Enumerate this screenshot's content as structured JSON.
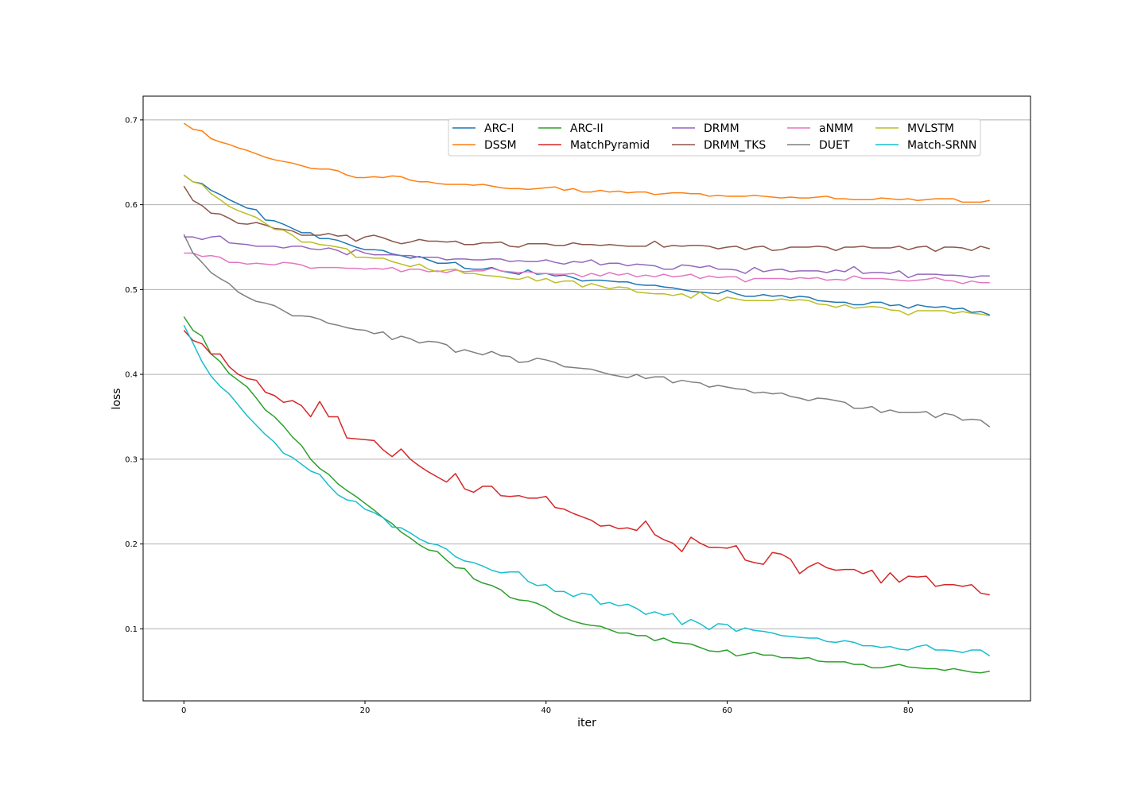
{
  "chart_data": {
    "type": "line",
    "title": "",
    "xlabel": "iter",
    "ylabel": "loss",
    "xlim": [
      -4.5,
      93.5
    ],
    "ylim": [
      0.015,
      0.728
    ],
    "xticks": [
      0,
      20,
      40,
      60,
      80
    ],
    "yticks": [
      0.1,
      0.2,
      0.3,
      0.4,
      0.5,
      0.6,
      0.7
    ],
    "ytick_labels": [
      "0.1",
      "0.2",
      "0.3",
      "0.4",
      "0.5",
      "0.6",
      "0.7"
    ],
    "grid": "horizontal",
    "legend_position": "upper-right",
    "legend_columns": 6,
    "x_start": 0,
    "x_step": 1,
    "series": [
      {
        "name": "ARC-I",
        "color": "#1f77b4",
        "values": [
          0.635,
          0.627,
          0.625,
          0.617,
          0.612,
          0.606,
          0.601,
          0.596,
          0.594,
          0.582,
          0.581,
          0.577,
          0.572,
          0.567,
          0.567,
          0.56,
          0.56,
          0.558,
          0.554,
          0.55,
          0.547,
          0.547,
          0.546,
          0.542,
          0.54,
          0.537,
          0.539,
          0.535,
          0.531,
          0.531,
          0.532,
          0.525,
          0.524,
          0.524,
          0.526,
          0.522,
          0.52,
          0.518,
          0.523,
          0.518,
          0.519,
          0.516,
          0.517,
          0.514,
          0.51,
          0.511,
          0.511,
          0.51,
          0.509,
          0.509,
          0.506,
          0.505,
          0.505,
          0.503,
          0.502,
          0.5,
          0.498,
          0.497,
          0.496,
          0.495,
          0.499,
          0.495,
          0.492,
          0.492,
          0.494,
          0.492,
          0.493,
          0.49,
          0.492,
          0.491,
          0.487,
          0.486,
          0.485,
          0.485,
          0.482,
          0.482,
          0.485,
          0.485,
          0.481,
          0.482,
          0.478,
          0.482,
          0.48,
          0.479,
          0.48,
          0.477,
          0.478,
          0.473,
          0.474,
          0.47
        ]
      },
      {
        "name": "DSSM",
        "color": "#ff7f0e",
        "values": [
          0.696,
          0.689,
          0.687,
          0.678,
          0.674,
          0.671,
          0.667,
          0.664,
          0.66,
          0.656,
          0.653,
          0.651,
          0.649,
          0.646,
          0.643,
          0.642,
          0.642,
          0.64,
          0.635,
          0.632,
          0.632,
          0.633,
          0.632,
          0.634,
          0.633,
          0.629,
          0.627,
          0.627,
          0.625,
          0.624,
          0.624,
          0.624,
          0.623,
          0.624,
          0.622,
          0.62,
          0.619,
          0.619,
          0.618,
          0.619,
          0.62,
          0.621,
          0.617,
          0.619,
          0.615,
          0.615,
          0.617,
          0.615,
          0.616,
          0.614,
          0.615,
          0.615,
          0.612,
          0.613,
          0.614,
          0.614,
          0.613,
          0.613,
          0.61,
          0.611,
          0.61,
          0.61,
          0.61,
          0.611,
          0.61,
          0.609,
          0.608,
          0.609,
          0.608,
          0.608,
          0.609,
          0.61,
          0.607,
          0.607,
          0.606,
          0.606,
          0.606,
          0.608,
          0.607,
          0.606,
          0.607,
          0.605,
          0.606,
          0.607,
          0.607,
          0.607,
          0.603,
          0.603,
          0.603,
          0.605
        ]
      },
      {
        "name": "ARC-II",
        "color": "#2ca02c",
        "values": [
          0.468,
          0.452,
          0.445,
          0.424,
          0.415,
          0.401,
          0.393,
          0.385,
          0.372,
          0.358,
          0.35,
          0.339,
          0.326,
          0.316,
          0.3,
          0.289,
          0.282,
          0.271,
          0.263,
          0.256,
          0.248,
          0.24,
          0.231,
          0.224,
          0.214,
          0.207,
          0.199,
          0.193,
          0.191,
          0.181,
          0.172,
          0.171,
          0.159,
          0.154,
          0.151,
          0.146,
          0.137,
          0.134,
          0.133,
          0.13,
          0.125,
          0.118,
          0.113,
          0.109,
          0.106,
          0.104,
          0.103,
          0.099,
          0.095,
          0.095,
          0.092,
          0.092,
          0.086,
          0.089,
          0.084,
          0.083,
          0.082,
          0.078,
          0.074,
          0.073,
          0.075,
          0.068,
          0.07,
          0.072,
          0.069,
          0.069,
          0.066,
          0.066,
          0.065,
          0.066,
          0.062,
          0.061,
          0.061,
          0.061,
          0.058,
          0.058,
          0.054,
          0.054,
          0.056,
          0.058,
          0.055,
          0.054,
          0.053,
          0.053,
          0.051,
          0.053,
          0.051,
          0.049,
          0.048,
          0.05
        ]
      },
      {
        "name": "MatchPyramid",
        "color": "#d62728",
        "values": [
          0.452,
          0.44,
          0.436,
          0.424,
          0.424,
          0.409,
          0.4,
          0.395,
          0.393,
          0.379,
          0.375,
          0.367,
          0.369,
          0.363,
          0.35,
          0.368,
          0.35,
          0.35,
          0.325,
          0.324,
          0.323,
          0.322,
          0.311,
          0.303,
          0.312,
          0.3,
          0.292,
          0.285,
          0.279,
          0.273,
          0.283,
          0.265,
          0.261,
          0.268,
          0.268,
          0.257,
          0.256,
          0.257,
          0.254,
          0.254,
          0.256,
          0.243,
          0.241,
          0.236,
          0.232,
          0.228,
          0.221,
          0.222,
          0.218,
          0.219,
          0.216,
          0.227,
          0.211,
          0.205,
          0.201,
          0.191,
          0.208,
          0.201,
          0.196,
          0.196,
          0.195,
          0.198,
          0.181,
          0.178,
          0.176,
          0.19,
          0.188,
          0.182,
          0.165,
          0.173,
          0.178,
          0.172,
          0.169,
          0.17,
          0.17,
          0.165,
          0.169,
          0.154,
          0.166,
          0.155,
          0.162,
          0.161,
          0.162,
          0.15,
          0.152,
          0.152,
          0.15,
          0.152,
          0.142,
          0.14
        ]
      },
      {
        "name": "DRMM",
        "color": "#9467bd",
        "values": [
          0.562,
          0.562,
          0.559,
          0.562,
          0.563,
          0.555,
          0.554,
          0.553,
          0.551,
          0.551,
          0.551,
          0.549,
          0.551,
          0.551,
          0.548,
          0.547,
          0.549,
          0.546,
          0.541,
          0.547,
          0.543,
          0.541,
          0.541,
          0.541,
          0.54,
          0.54,
          0.538,
          0.538,
          0.538,
          0.535,
          0.536,
          0.536,
          0.535,
          0.535,
          0.536,
          0.536,
          0.533,
          0.534,
          0.533,
          0.533,
          0.535,
          0.532,
          0.53,
          0.533,
          0.532,
          0.535,
          0.529,
          0.531,
          0.531,
          0.528,
          0.53,
          0.529,
          0.528,
          0.524,
          0.524,
          0.529,
          0.528,
          0.526,
          0.528,
          0.524,
          0.524,
          0.523,
          0.519,
          0.526,
          0.521,
          0.523,
          0.524,
          0.521,
          0.522,
          0.522,
          0.522,
          0.52,
          0.523,
          0.521,
          0.527,
          0.519,
          0.52,
          0.52,
          0.519,
          0.522,
          0.514,
          0.518,
          0.518,
          0.518,
          0.517,
          0.517,
          0.516,
          0.514,
          0.516,
          0.516
        ]
      },
      {
        "name": "DRMM_TKS",
        "color": "#8c564b",
        "values": [
          0.622,
          0.605,
          0.599,
          0.59,
          0.589,
          0.584,
          0.578,
          0.577,
          0.579,
          0.576,
          0.572,
          0.571,
          0.569,
          0.564,
          0.564,
          0.564,
          0.566,
          0.563,
          0.564,
          0.557,
          0.562,
          0.564,
          0.561,
          0.557,
          0.554,
          0.556,
          0.559,
          0.557,
          0.557,
          0.556,
          0.557,
          0.553,
          0.553,
          0.555,
          0.555,
          0.556,
          0.551,
          0.55,
          0.554,
          0.554,
          0.554,
          0.552,
          0.552,
          0.555,
          0.553,
          0.553,
          0.552,
          0.553,
          0.552,
          0.551,
          0.551,
          0.551,
          0.557,
          0.55,
          0.552,
          0.551,
          0.552,
          0.552,
          0.551,
          0.548,
          0.55,
          0.551,
          0.547,
          0.55,
          0.551,
          0.546,
          0.547,
          0.55,
          0.55,
          0.55,
          0.551,
          0.55,
          0.546,
          0.55,
          0.55,
          0.551,
          0.549,
          0.549,
          0.549,
          0.551,
          0.547,
          0.55,
          0.551,
          0.545,
          0.55,
          0.55,
          0.549,
          0.546,
          0.551,
          0.548
        ]
      },
      {
        "name": "aNMM",
        "color": "#e377c2",
        "values": [
          0.543,
          0.543,
          0.539,
          0.54,
          0.538,
          0.532,
          0.532,
          0.53,
          0.531,
          0.53,
          0.529,
          0.532,
          0.531,
          0.529,
          0.525,
          0.526,
          0.526,
          0.526,
          0.525,
          0.525,
          0.524,
          0.525,
          0.524,
          0.526,
          0.521,
          0.524,
          0.524,
          0.521,
          0.522,
          0.52,
          0.523,
          0.521,
          0.522,
          0.522,
          0.525,
          0.522,
          0.521,
          0.52,
          0.521,
          0.519,
          0.519,
          0.518,
          0.518,
          0.519,
          0.515,
          0.519,
          0.516,
          0.52,
          0.517,
          0.519,
          0.515,
          0.517,
          0.515,
          0.518,
          0.515,
          0.516,
          0.518,
          0.513,
          0.516,
          0.514,
          0.515,
          0.515,
          0.509,
          0.513,
          0.513,
          0.513,
          0.513,
          0.512,
          0.514,
          0.513,
          0.514,
          0.511,
          0.512,
          0.511,
          0.516,
          0.513,
          0.513,
          0.513,
          0.512,
          0.511,
          0.51,
          0.511,
          0.512,
          0.514,
          0.511,
          0.51,
          0.507,
          0.51,
          0.508,
          0.508
        ]
      },
      {
        "name": "DUET",
        "color": "#7f7f7f",
        "values": [
          0.565,
          0.543,
          0.532,
          0.52,
          0.513,
          0.507,
          0.497,
          0.491,
          0.486,
          0.484,
          0.481,
          0.475,
          0.469,
          0.469,
          0.468,
          0.465,
          0.46,
          0.458,
          0.455,
          0.453,
          0.452,
          0.448,
          0.45,
          0.441,
          0.445,
          0.442,
          0.437,
          0.439,
          0.438,
          0.435,
          0.426,
          0.429,
          0.426,
          0.423,
          0.427,
          0.422,
          0.421,
          0.414,
          0.415,
          0.419,
          0.417,
          0.414,
          0.409,
          0.408,
          0.407,
          0.406,
          0.403,
          0.4,
          0.398,
          0.396,
          0.4,
          0.395,
          0.397,
          0.397,
          0.39,
          0.393,
          0.391,
          0.39,
          0.385,
          0.387,
          0.385,
          0.383,
          0.382,
          0.378,
          0.379,
          0.377,
          0.378,
          0.374,
          0.372,
          0.369,
          0.372,
          0.371,
          0.369,
          0.367,
          0.36,
          0.36,
          0.362,
          0.355,
          0.358,
          0.355,
          0.355,
          0.355,
          0.356,
          0.349,
          0.354,
          0.352,
          0.346,
          0.347,
          0.346,
          0.338
        ]
      },
      {
        "name": "MVLSTM",
        "color": "#bcbd22",
        "values": [
          0.635,
          0.627,
          0.624,
          0.613,
          0.606,
          0.598,
          0.593,
          0.589,
          0.585,
          0.578,
          0.571,
          0.57,
          0.564,
          0.556,
          0.556,
          0.553,
          0.552,
          0.55,
          0.548,
          0.538,
          0.538,
          0.537,
          0.537,
          0.533,
          0.53,
          0.527,
          0.53,
          0.524,
          0.521,
          0.523,
          0.524,
          0.519,
          0.519,
          0.517,
          0.516,
          0.515,
          0.513,
          0.512,
          0.515,
          0.51,
          0.513,
          0.508,
          0.51,
          0.51,
          0.503,
          0.507,
          0.504,
          0.501,
          0.503,
          0.502,
          0.497,
          0.496,
          0.495,
          0.495,
          0.493,
          0.495,
          0.49,
          0.497,
          0.49,
          0.486,
          0.491,
          0.489,
          0.487,
          0.487,
          0.487,
          0.487,
          0.489,
          0.487,
          0.488,
          0.487,
          0.483,
          0.482,
          0.479,
          0.482,
          0.478,
          0.479,
          0.48,
          0.479,
          0.476,
          0.475,
          0.47,
          0.475,
          0.475,
          0.475,
          0.475,
          0.472,
          0.474,
          0.472,
          0.471,
          0.469
        ]
      },
      {
        "name": "Match-SRNN",
        "color": "#17becf",
        "values": [
          0.458,
          0.437,
          0.415,
          0.398,
          0.386,
          0.377,
          0.364,
          0.351,
          0.34,
          0.329,
          0.32,
          0.307,
          0.302,
          0.294,
          0.286,
          0.282,
          0.269,
          0.258,
          0.252,
          0.25,
          0.241,
          0.237,
          0.231,
          0.22,
          0.219,
          0.213,
          0.206,
          0.201,
          0.199,
          0.194,
          0.185,
          0.18,
          0.178,
          0.174,
          0.169,
          0.166,
          0.167,
          0.167,
          0.156,
          0.151,
          0.152,
          0.144,
          0.144,
          0.138,
          0.142,
          0.14,
          0.129,
          0.131,
          0.127,
          0.129,
          0.124,
          0.117,
          0.12,
          0.116,
          0.118,
          0.105,
          0.111,
          0.106,
          0.099,
          0.106,
          0.105,
          0.097,
          0.101,
          0.098,
          0.097,
          0.095,
          0.092,
          0.091,
          0.09,
          0.089,
          0.089,
          0.085,
          0.084,
          0.086,
          0.084,
          0.08,
          0.08,
          0.078,
          0.079,
          0.076,
          0.075,
          0.079,
          0.081,
          0.075,
          0.075,
          0.074,
          0.072,
          0.075,
          0.075,
          0.068
        ]
      }
    ]
  }
}
